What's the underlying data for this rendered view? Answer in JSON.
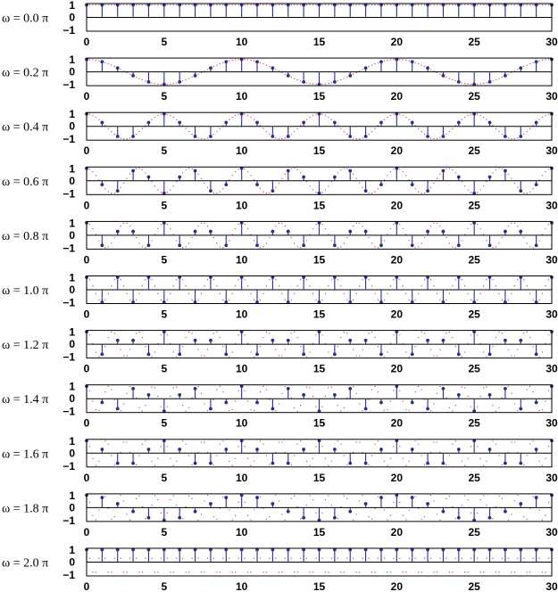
{
  "chart_data": [
    {
      "type": "stem",
      "label": "ω = 0.0 π",
      "omega_pi": 0.0,
      "x_range": [
        0,
        30
      ],
      "ylim": [
        -1,
        1
      ],
      "yticks": [
        "1",
        "0",
        "−1"
      ],
      "xticks": [
        "0",
        "5",
        "10",
        "15",
        "20",
        "25",
        "30"
      ],
      "show_xticks": true
    },
    {
      "type": "stem",
      "label": "ω = 0.2 π",
      "omega_pi": 0.2,
      "x_range": [
        0,
        30
      ],
      "ylim": [
        -1,
        1
      ],
      "yticks": [
        "1",
        "0",
        "−1"
      ],
      "xticks": [
        "0",
        "5",
        "10",
        "15",
        "20",
        "25",
        "30"
      ],
      "show_xticks": true
    },
    {
      "type": "stem",
      "label": "ω = 0.4 π",
      "omega_pi": 0.4,
      "x_range": [
        0,
        30
      ],
      "ylim": [
        -1,
        1
      ],
      "yticks": [
        "1",
        "0",
        "−1"
      ],
      "xticks": [
        "0",
        "5",
        "10",
        "15",
        "20",
        "25",
        "30"
      ],
      "show_xticks": true
    },
    {
      "type": "stem",
      "label": "ω = 0.6 π",
      "omega_pi": 0.6,
      "x_range": [
        0,
        30
      ],
      "ylim": [
        -1,
        1
      ],
      "yticks": [
        "1",
        "0",
        "−1"
      ],
      "xticks": [
        "0",
        "5",
        "10",
        "15",
        "20",
        "25",
        "30"
      ],
      "show_xticks": true
    },
    {
      "type": "stem",
      "label": "ω = 0.8 π",
      "omega_pi": 0.8,
      "x_range": [
        0,
        30
      ],
      "ylim": [
        -1,
        1
      ],
      "yticks": [
        "1",
        "0",
        "−1"
      ],
      "xticks": [
        "0",
        "5",
        "10",
        "15",
        "20",
        "25",
        "30"
      ],
      "show_xticks": true
    },
    {
      "type": "stem",
      "label": "ω = 1.0 π",
      "omega_pi": 1.0,
      "x_range": [
        0,
        30
      ],
      "ylim": [
        -1,
        1
      ],
      "yticks": [
        "1",
        "0",
        "−1"
      ],
      "xticks": [
        "0",
        "5",
        "10",
        "15",
        "20",
        "25",
        "30"
      ],
      "show_xticks": true
    },
    {
      "type": "stem",
      "label": "ω = 1.2 π",
      "omega_pi": 1.2,
      "x_range": [
        0,
        30
      ],
      "ylim": [
        -1,
        1
      ],
      "yticks": [
        "1",
        "0",
        "−1"
      ],
      "xticks": [
        "0",
        "5",
        "10",
        "15",
        "20",
        "25",
        "30"
      ],
      "show_xticks": true
    },
    {
      "type": "stem",
      "label": "ω = 1.4 π",
      "omega_pi": 1.4,
      "x_range": [
        0,
        30
      ],
      "ylim": [
        -1,
        1
      ],
      "yticks": [
        "1",
        "0",
        "−1"
      ],
      "xticks": [
        "0",
        "5",
        "10",
        "15",
        "20",
        "25",
        "30"
      ],
      "show_xticks": true
    },
    {
      "type": "stem",
      "label": "ω = 1.6 π",
      "omega_pi": 1.6,
      "x_range": [
        0,
        30
      ],
      "ylim": [
        -1,
        1
      ],
      "yticks": [
        "1",
        "0",
        "−1"
      ],
      "xticks": [
        "0",
        "5",
        "10",
        "15",
        "20",
        "25",
        "30"
      ],
      "show_xticks": true
    },
    {
      "type": "stem",
      "label": "ω = 1.8 π",
      "omega_pi": 1.8,
      "x_range": [
        0,
        30
      ],
      "ylim": [
        -1,
        1
      ],
      "yticks": [
        "1",
        "0",
        "−1"
      ],
      "xticks": [
        "0",
        "5",
        "10",
        "15",
        "20",
        "25",
        "30"
      ],
      "show_xticks": true
    },
    {
      "type": "stem",
      "label": "ω = 2.0 π",
      "omega_pi": 2.0,
      "x_range": [
        0,
        30
      ],
      "ylim": [
        -1,
        1
      ],
      "yticks": [
        "1",
        "0",
        "−1"
      ],
      "xticks": [
        "0",
        "5",
        "10",
        "15",
        "20",
        "25",
        "30"
      ],
      "show_xticks": true
    }
  ],
  "colors": {
    "stem": "#2e2e8a",
    "envelope": "#d33a6a",
    "axes": "#000000"
  }
}
